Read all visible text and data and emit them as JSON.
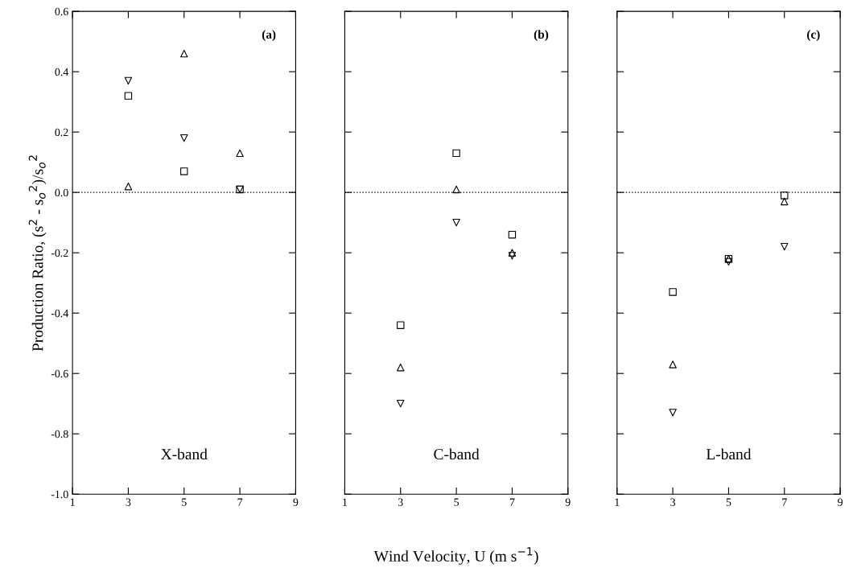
{
  "chart_data": [
    {
      "type": "scatter",
      "x": [
        3,
        5,
        7
      ],
      "xlim": [
        1,
        9
      ],
      "xticks": [
        1,
        3,
        5,
        7,
        9
      ],
      "ylim": [
        -1.0,
        0.6
      ],
      "yticks": [
        {
          "value": -1.0,
          "label": "-1.0"
        },
        {
          "value": -0.8,
          "label": "-0.8"
        },
        {
          "value": -0.6,
          "label": "-0.6"
        },
        {
          "value": -0.4,
          "label": "-0.4"
        },
        {
          "value": -0.2,
          "label": "-0.2"
        },
        {
          "value": 0.0,
          "label": "0.0"
        },
        {
          "value": 0.2,
          "label": "0.2"
        },
        {
          "value": 0.4,
          "label": "0.4"
        },
        {
          "value": 0.6,
          "label": "0.6"
        }
      ],
      "ylabel": "Production Ratio, (s$^{2}$ - s$_{o}$$^{2}$)/s$_{o}$$^{2}$",
      "annotations": [
        "(a)",
        "X-band"
      ],
      "ref_lines": [
        {
          "axis": "y",
          "value": 0,
          "line_style": "dotted",
          "color": "#000000"
        }
      ],
      "series": [
        {
          "color": "#000000",
          "marker": "square",
          "values": [
            0.32,
            0.07,
            0.01
          ]
        },
        {
          "color": "#000000",
          "marker": "triangle",
          "values": [
            0.02,
            0.46,
            0.13
          ]
        },
        {
          "color": "#000000",
          "marker": "triangle_down",
          "values": [
            0.37,
            0.18,
            0.01
          ]
        }
      ]
    },
    {
      "type": "scatter",
      "x": [
        3,
        5,
        7
      ],
      "xlim": [
        1,
        9
      ],
      "xticks": [
        1,
        3,
        5,
        7,
        9
      ],
      "ylim": [
        -1.0,
        0.6
      ],
      "yticks": [
        {
          "value": -1.0,
          "label": null
        },
        {
          "value": -0.8,
          "label": null
        },
        {
          "value": -0.6,
          "label": null
        },
        {
          "value": -0.4,
          "label": null
        },
        {
          "value": -0.2,
          "label": null
        },
        {
          "value": 0.0,
          "label": null
        },
        {
          "value": 0.2,
          "label": null
        },
        {
          "value": 0.4,
          "label": null
        },
        {
          "value": 0.6,
          "label": null
        }
      ],
      "tick_labels": "x",
      "xlabel": "Wind Velocity, U (m s$^{−1}$)",
      "annotations": [
        "(b)",
        "C-band"
      ],
      "ref_lines": [
        {
          "axis": "y",
          "value": 0,
          "line_style": "dotted",
          "color": "#000000"
        }
      ],
      "series": [
        {
          "color": "#000000",
          "marker": "square",
          "values": [
            -0.44,
            0.13,
            -0.14
          ]
        },
        {
          "color": "#000000",
          "marker": "triangle",
          "values": [
            -0.58,
            0.01,
            -0.2
          ]
        },
        {
          "color": "#000000",
          "marker": "triangle_down",
          "values": [
            -0.7,
            -0.1,
            -0.21
          ]
        }
      ]
    },
    {
      "type": "scatter",
      "x": [
        3,
        5,
        7
      ],
      "xlim": [
        1,
        9
      ],
      "xticks": [
        1,
        3,
        5,
        7,
        9
      ],
      "ylim": [
        -1.0,
        0.6
      ],
      "yticks": [
        {
          "value": -1.0,
          "label": null
        },
        {
          "value": -0.8,
          "label": null
        },
        {
          "value": -0.6,
          "label": null
        },
        {
          "value": -0.4,
          "label": null
        },
        {
          "value": -0.2,
          "label": null
        },
        {
          "value": 0.0,
          "label": null
        },
        {
          "value": 0.2,
          "label": null
        },
        {
          "value": 0.4,
          "label": null
        },
        {
          "value": 0.6,
          "label": null
        }
      ],
      "tick_labels": "x",
      "annotations": [
        "(c)",
        "L-band"
      ],
      "ref_lines": [
        {
          "axis": "y",
          "value": 0,
          "line_style": "dotted",
          "color": "#000000"
        }
      ],
      "series": [
        {
          "color": "#000000",
          "marker": "square",
          "values": [
            -0.33,
            -0.22,
            -0.01
          ]
        },
        {
          "color": "#000000",
          "marker": "triangle",
          "values": [
            -0.57,
            -0.22,
            -0.03
          ]
        },
        {
          "color": "#000000",
          "marker": "triangle_down",
          "values": [
            -0.73,
            -0.23,
            -0.18
          ]
        }
      ]
    }
  ]
}
